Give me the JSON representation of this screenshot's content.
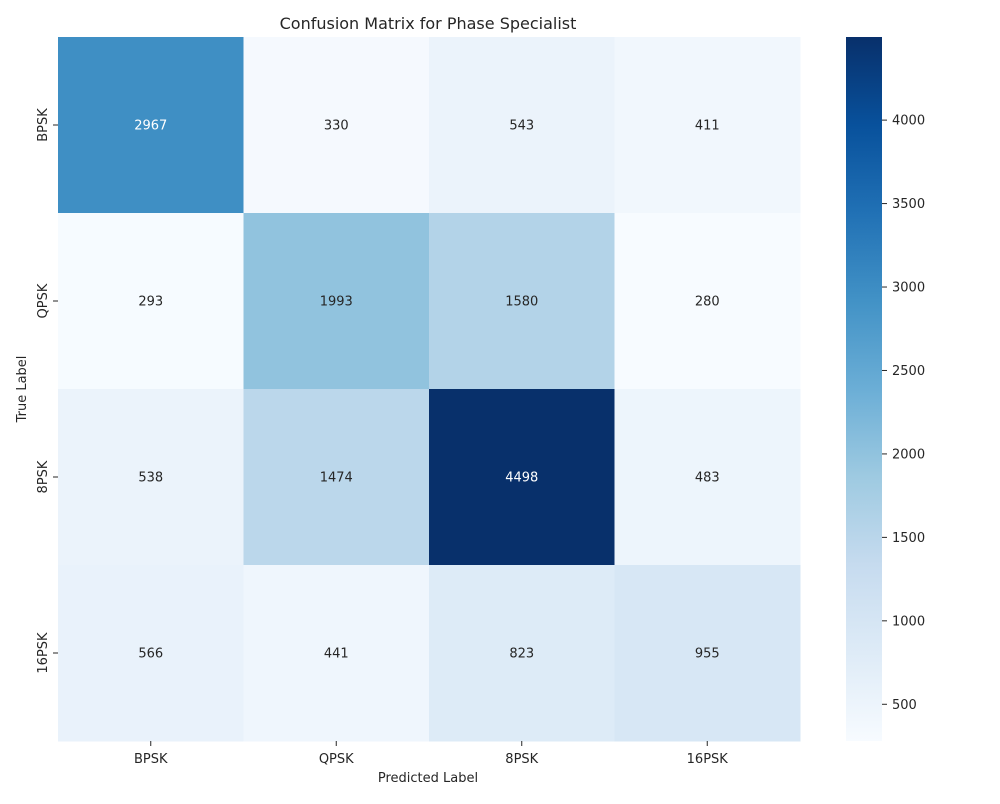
{
  "chart_data": {
    "type": "heatmap",
    "title": "Confusion Matrix for Phase Specialist",
    "xlabel": "Predicted Label",
    "ylabel": "True Label",
    "x_categories": [
      "BPSK",
      "QPSK",
      "8PSK",
      "16PSK"
    ],
    "y_categories": [
      "BPSK",
      "QPSK",
      "8PSK",
      "16PSK"
    ],
    "values": [
      [
        2967,
        330,
        543,
        411
      ],
      [
        293,
        1993,
        1580,
        280
      ],
      [
        538,
        1474,
        4498,
        483
      ],
      [
        566,
        441,
        823,
        955
      ]
    ],
    "colormap": "Blues",
    "color_range": [
      280,
      4498
    ],
    "colorbar_ticks": [
      500,
      1000,
      1500,
      2000,
      2500,
      3000,
      3500,
      4000
    ],
    "grid": false,
    "legend": "colorbar-right"
  }
}
